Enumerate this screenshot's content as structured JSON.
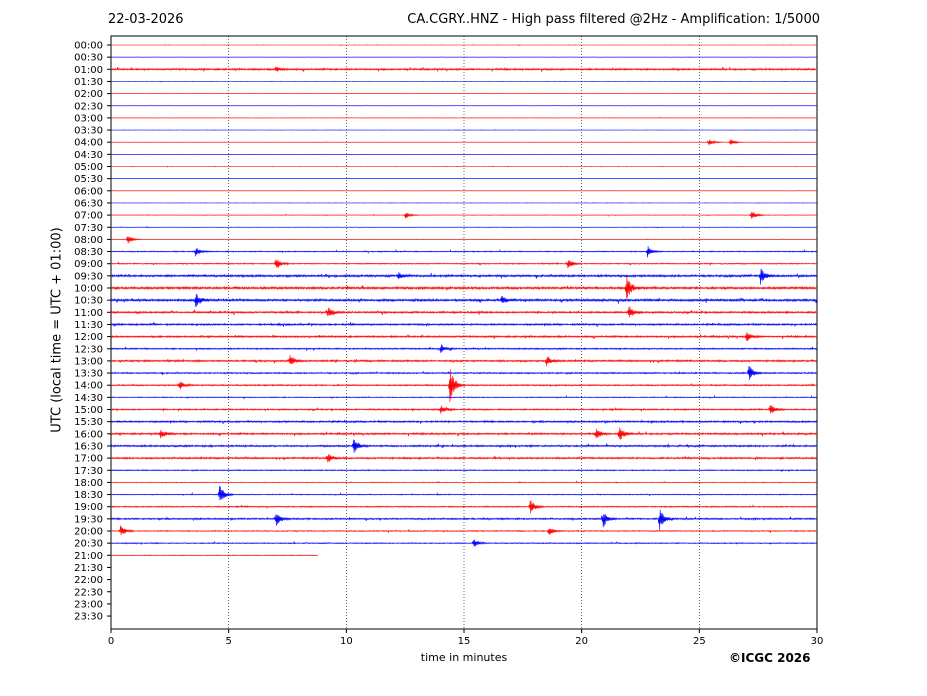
{
  "header": {
    "date": "22-03-2026",
    "title": "CA.CGRY..HNZ - High pass filtered @2Hz - Amplification: 1/5000"
  },
  "footer": {
    "copyright": "©ICGC 2026"
  },
  "chart_data": {
    "type": "line",
    "xlabel": "time in minutes",
    "ylabel": "UTC (local time = UTC + 01:00)",
    "xlim": [
      0,
      30
    ],
    "xticks": [
      0,
      5,
      10,
      15,
      20,
      25,
      30
    ],
    "rows": [
      "00:00",
      "00:30",
      "01:00",
      "01:30",
      "02:00",
      "02:30",
      "03:00",
      "03:30",
      "04:00",
      "04:30",
      "05:00",
      "05:30",
      "06:00",
      "06:30",
      "07:00",
      "07:30",
      "08:00",
      "08:30",
      "09:00",
      "09:30",
      "10:00",
      "10:30",
      "11:00",
      "11:30",
      "12:00",
      "12:30",
      "13:00",
      "13:30",
      "14:00",
      "14:30",
      "15:00",
      "15:30",
      "16:00",
      "16:30",
      "17:00",
      "17:30",
      "18:00",
      "18:30",
      "19:00",
      "19:30",
      "20:00",
      "20:30",
      "21:00",
      "21:30",
      "22:00",
      "22:30",
      "23:00",
      "23:30"
    ],
    "trace_colors": [
      "#ff0000",
      "#0000ff"
    ],
    "last_trace_end_minutes": 8.8,
    "grid": "vertical dotted at 5-minute ticks",
    "noise_level": [
      0.2,
      0.2,
      1.0,
      0.2,
      0.2,
      0.2,
      0.2,
      0.2,
      0.2,
      0.2,
      0.2,
      0.2,
      0.2,
      0.2,
      0.3,
      0.3,
      0.3,
      0.6,
      0.6,
      1.2,
      1.3,
      1.3,
      1.0,
      1.0,
      1.0,
      0.8,
      1.0,
      0.8,
      0.8,
      0.5,
      0.8,
      1.0,
      1.0,
      1.0,
      1.0,
      0.6,
      0.4,
      0.5,
      0.7,
      0.9,
      0.6,
      0.6,
      0.1,
      0,
      0,
      0,
      0,
      0
    ],
    "events": [
      {
        "row": "01:00",
        "minute": 7.0,
        "amplitude": 3
      },
      {
        "row": "04:00",
        "minute": 25.4,
        "amplitude": 4
      },
      {
        "row": "04:00",
        "minute": 26.3,
        "amplitude": 4
      },
      {
        "row": "07:00",
        "minute": 12.5,
        "amplitude": 4
      },
      {
        "row": "07:00",
        "minute": 27.2,
        "amplitude": 6
      },
      {
        "row": "08:00",
        "minute": 0.7,
        "amplitude": 5
      },
      {
        "row": "08:30",
        "minute": 3.6,
        "amplitude": 5
      },
      {
        "row": "08:30",
        "minute": 22.8,
        "amplitude": 6
      },
      {
        "row": "09:00",
        "minute": 7.0,
        "amplitude": 7
      },
      {
        "row": "09:00",
        "minute": 19.4,
        "amplitude": 5
      },
      {
        "row": "09:30",
        "minute": 12.2,
        "amplitude": 4
      },
      {
        "row": "09:30",
        "minute": 27.6,
        "amplitude": 8
      },
      {
        "row": "10:00",
        "minute": 21.9,
        "amplitude": 13
      },
      {
        "row": "10:30",
        "minute": 3.6,
        "amplitude": 8
      },
      {
        "row": "10:30",
        "minute": 16.6,
        "amplitude": 5
      },
      {
        "row": "11:00",
        "minute": 9.2,
        "amplitude": 7
      },
      {
        "row": "11:00",
        "minute": 22.0,
        "amplitude": 7
      },
      {
        "row": "12:00",
        "minute": 27.0,
        "amplitude": 5
      },
      {
        "row": "12:30",
        "minute": 14.0,
        "amplitude": 5
      },
      {
        "row": "13:00",
        "minute": 7.6,
        "amplitude": 6
      },
      {
        "row": "13:00",
        "minute": 18.5,
        "amplitude": 6
      },
      {
        "row": "13:30",
        "minute": 27.1,
        "amplitude": 9
      },
      {
        "row": "14:00",
        "minute": 14.4,
        "amplitude": 18
      },
      {
        "row": "14:00",
        "minute": 2.9,
        "amplitude": 5
      },
      {
        "row": "15:00",
        "minute": 28.0,
        "amplitude": 6
      },
      {
        "row": "15:00",
        "minute": 14.0,
        "amplitude": 5
      },
      {
        "row": "16:00",
        "minute": 2.1,
        "amplitude": 5
      },
      {
        "row": "16:00",
        "minute": 20.6,
        "amplitude": 7
      },
      {
        "row": "16:00",
        "minute": 21.6,
        "amplitude": 8
      },
      {
        "row": "16:30",
        "minute": 10.3,
        "amplitude": 9
      },
      {
        "row": "17:00",
        "minute": 9.2,
        "amplitude": 5
      },
      {
        "row": "18:30",
        "minute": 4.6,
        "amplitude": 12
      },
      {
        "row": "19:00",
        "minute": 17.8,
        "amplitude": 8
      },
      {
        "row": "19:30",
        "minute": 20.9,
        "amplitude": 10
      },
      {
        "row": "19:30",
        "minute": 23.3,
        "amplitude": 12
      },
      {
        "row": "19:30",
        "minute": 7.0,
        "amplitude": 8
      },
      {
        "row": "20:00",
        "minute": 0.4,
        "amplitude": 7
      },
      {
        "row": "20:00",
        "minute": 18.6,
        "amplitude": 5
      },
      {
        "row": "20:30",
        "minute": 15.4,
        "amplitude": 5
      }
    ]
  }
}
